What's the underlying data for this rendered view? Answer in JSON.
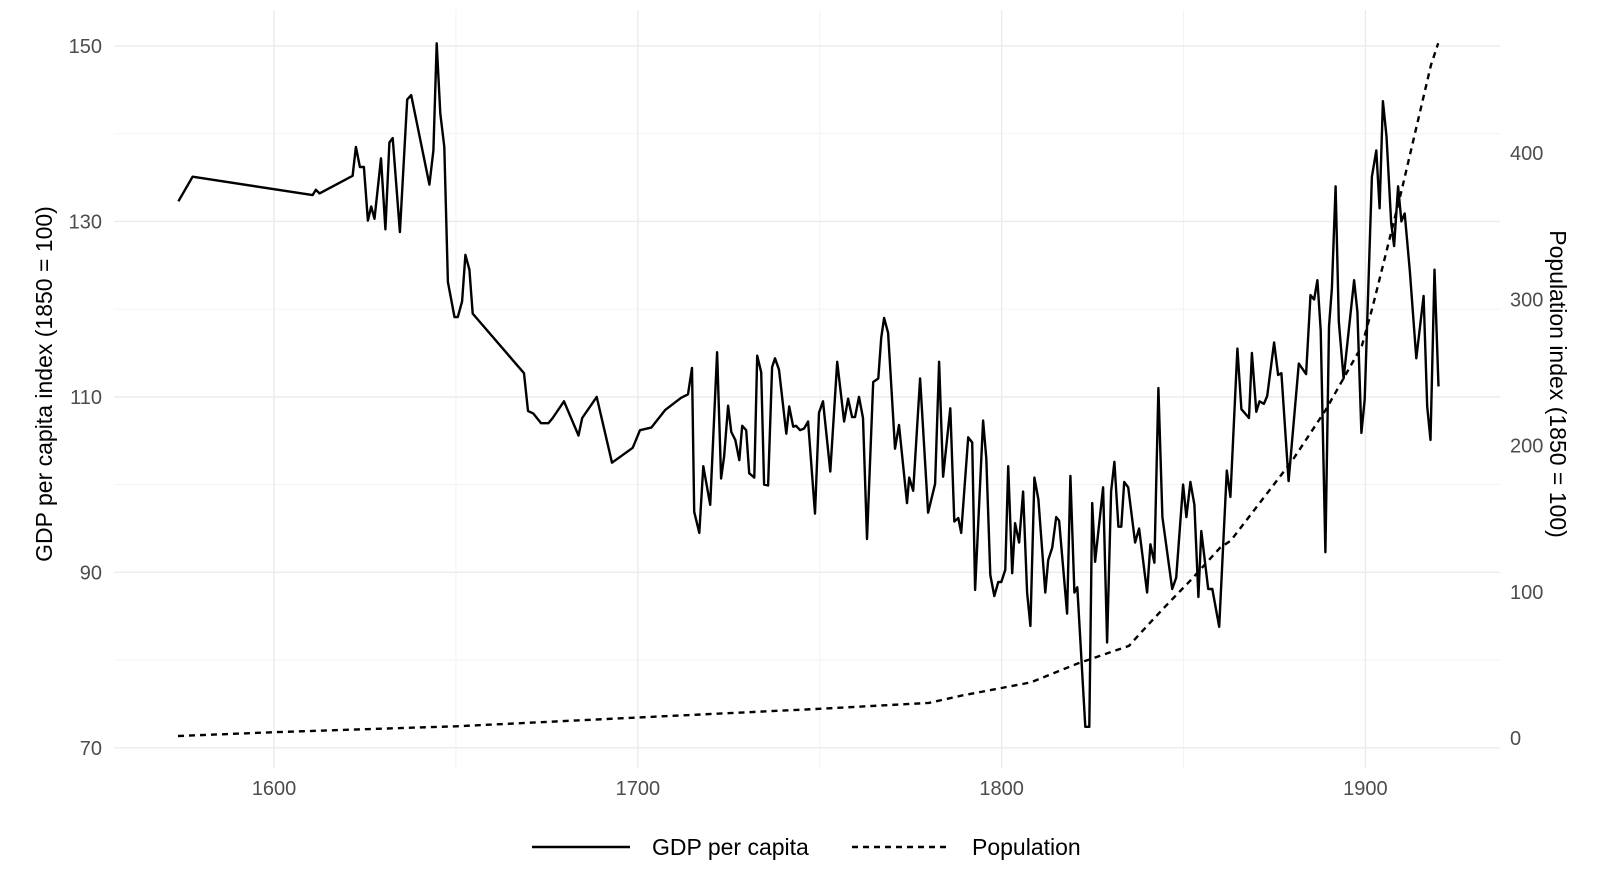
{
  "chart_data": {
    "type": "line",
    "title": "",
    "xlabel": "",
    "ylabel": "GDP per capita index (1850 = 100)",
    "y2label": "Population index (1850 = 100)",
    "xlim": [
      1556,
      1937
    ],
    "ylim": [
      67.7,
      154.1
    ],
    "y2lim": [
      -20.5,
      497.8
    ],
    "grid": true,
    "legend_position": "bottom",
    "x_ticks": [
      1600,
      1700,
      1800,
      1900
    ],
    "x_minor_ticks": [
      1650,
      1750,
      1850
    ],
    "y_ticks": [
      70,
      90,
      110,
      130,
      150
    ],
    "y_minor_ticks": [
      80,
      100,
      120,
      140
    ],
    "y2_ticks": [
      0,
      100,
      200,
      300,
      400
    ],
    "series": [
      {
        "name": "GDP per capita",
        "axis": "left",
        "style": "solid",
        "color": "#000000",
        "points": [
          [
            1573.7,
            132.3
          ],
          [
            1577.6,
            135.1
          ],
          [
            1610.6,
            133.0
          ],
          [
            1611.5,
            133.6
          ],
          [
            1612.5,
            133.2
          ],
          [
            1621.6,
            135.2
          ],
          [
            1622.5,
            138.5
          ],
          [
            1623.6,
            136.2
          ],
          [
            1624.7,
            136.2
          ],
          [
            1625.8,
            130.1
          ],
          [
            1626.7,
            131.7
          ],
          [
            1627.6,
            130.3
          ],
          [
            1629.4,
            137.2
          ],
          [
            1630.6,
            129.1
          ],
          [
            1631.7,
            139.0
          ],
          [
            1632.6,
            139.5
          ],
          [
            1634.6,
            128.8
          ],
          [
            1636.6,
            143.9
          ],
          [
            1637.7,
            144.4
          ],
          [
            1642.7,
            134.2
          ],
          [
            1643.8,
            138.1
          ],
          [
            1644.7,
            150.3
          ],
          [
            1645.7,
            142.3
          ],
          [
            1646.8,
            138.5
          ],
          [
            1647.8,
            123.1
          ],
          [
            1648.7,
            121.1
          ],
          [
            1649.6,
            119.1
          ],
          [
            1650.5,
            119.1
          ],
          [
            1651.7,
            120.9
          ],
          [
            1652.6,
            126.2
          ],
          [
            1653.7,
            124.5
          ],
          [
            1654.6,
            119.5
          ],
          [
            1668.7,
            112.7
          ],
          [
            1669.8,
            108.4
          ],
          [
            1671.3,
            108.1
          ],
          [
            1673.4,
            107.0
          ],
          [
            1675.4,
            107.0
          ],
          [
            1676.6,
            107.6
          ],
          [
            1679.7,
            109.5
          ],
          [
            1683.7,
            105.6
          ],
          [
            1684.7,
            107.6
          ],
          [
            1688.7,
            110.0
          ],
          [
            1692.9,
            102.5
          ],
          [
            1698.6,
            104.2
          ],
          [
            1700.6,
            106.2
          ],
          [
            1703.7,
            106.5
          ],
          [
            1707.5,
            108.5
          ],
          [
            1711.9,
            109.9
          ],
          [
            1713.8,
            110.3
          ],
          [
            1714.9,
            113.3
          ],
          [
            1715.5,
            96.9
          ],
          [
            1716.9,
            94.5
          ],
          [
            1718.0,
            102.1
          ],
          [
            1719.9,
            97.7
          ],
          [
            1721.8,
            115.1
          ],
          [
            1722.9,
            100.7
          ],
          [
            1723.7,
            103.2
          ],
          [
            1724.8,
            109.0
          ],
          [
            1725.7,
            106.0
          ],
          [
            1726.8,
            105.1
          ],
          [
            1727.9,
            102.8
          ],
          [
            1728.7,
            106.7
          ],
          [
            1729.8,
            106.2
          ],
          [
            1730.6,
            101.3
          ],
          [
            1732.0,
            100.8
          ],
          [
            1732.8,
            114.7
          ],
          [
            1733.9,
            112.8
          ],
          [
            1734.7,
            100.0
          ],
          [
            1735.8,
            99.9
          ],
          [
            1736.9,
            113.4
          ],
          [
            1737.7,
            114.4
          ],
          [
            1738.8,
            113.1
          ],
          [
            1740.8,
            105.8
          ],
          [
            1741.6,
            108.9
          ],
          [
            1742.7,
            106.6
          ],
          [
            1743.5,
            106.7
          ],
          [
            1744.6,
            106.2
          ],
          [
            1745.7,
            106.4
          ],
          [
            1746.8,
            107.2
          ],
          [
            1748.7,
            96.7
          ],
          [
            1749.8,
            108.2
          ],
          [
            1750.9,
            109.5
          ],
          [
            1752.9,
            101.5
          ],
          [
            1754.8,
            114.0
          ],
          [
            1756.7,
            107.2
          ],
          [
            1757.8,
            109.8
          ],
          [
            1758.9,
            107.7
          ],
          [
            1759.7,
            107.7
          ],
          [
            1760.8,
            110.0
          ],
          [
            1761.9,
            107.6
          ],
          [
            1763.0,
            93.8
          ],
          [
            1764.7,
            111.7
          ],
          [
            1766.1,
            112.1
          ],
          [
            1766.9,
            116.7
          ],
          [
            1767.7,
            119.0
          ],
          [
            1768.8,
            117.3
          ],
          [
            1770.2,
            107.6
          ],
          [
            1770.7,
            104.1
          ],
          [
            1771.8,
            106.8
          ],
          [
            1774.0,
            97.9
          ],
          [
            1774.6,
            100.8
          ],
          [
            1775.7,
            99.3
          ],
          [
            1777.6,
            112.1
          ],
          [
            1779.8,
            96.8
          ],
          [
            1781.7,
            100.1
          ],
          [
            1782.8,
            114.0
          ],
          [
            1783.9,
            100.9
          ],
          [
            1785.9,
            108.7
          ],
          [
            1787.0,
            95.8
          ],
          [
            1788.1,
            96.2
          ],
          [
            1788.9,
            94.5
          ],
          [
            1790.8,
            105.4
          ],
          [
            1791.9,
            104.8
          ],
          [
            1792.7,
            88.0
          ],
          [
            1794.9,
            107.3
          ],
          [
            1795.8,
            103.0
          ],
          [
            1796.9,
            89.7
          ],
          [
            1798.0,
            87.3
          ],
          [
            1799.1,
            88.9
          ],
          [
            1799.9,
            88.9
          ],
          [
            1801.0,
            90.3
          ],
          [
            1801.8,
            102.1
          ],
          [
            1802.9,
            89.9
          ],
          [
            1803.7,
            95.6
          ],
          [
            1804.8,
            93.4
          ],
          [
            1805.9,
            99.2
          ],
          [
            1807.0,
            87.7
          ],
          [
            1807.9,
            83.9
          ],
          [
            1809.0,
            100.8
          ],
          [
            1810.1,
            98.3
          ],
          [
            1812.0,
            87.7
          ],
          [
            1812.8,
            91.4
          ],
          [
            1813.9,
            92.8
          ],
          [
            1815.0,
            96.3
          ],
          [
            1815.8,
            95.9
          ],
          [
            1818.0,
            85.3
          ],
          [
            1818.9,
            101.0
          ],
          [
            1820.0,
            87.7
          ],
          [
            1820.8,
            88.3
          ],
          [
            1823.0,
            72.4
          ],
          [
            1824.1,
            72.4
          ],
          [
            1824.9,
            97.9
          ],
          [
            1825.7,
            91.2
          ],
          [
            1827.9,
            99.7
          ],
          [
            1829.0,
            82.0
          ],
          [
            1830.1,
            99.2
          ],
          [
            1831.0,
            102.6
          ],
          [
            1832.1,
            95.2
          ],
          [
            1832.9,
            95.2
          ],
          [
            1833.7,
            100.3
          ],
          [
            1834.8,
            99.7
          ],
          [
            1836.7,
            93.4
          ],
          [
            1837.8,
            95.0
          ],
          [
            1840.0,
            87.7
          ],
          [
            1840.9,
            93.2
          ],
          [
            1842.0,
            91.1
          ],
          [
            1843.1,
            111.0
          ],
          [
            1844.2,
            96.3
          ],
          [
            1846.9,
            88.1
          ],
          [
            1848.0,
            89.4
          ],
          [
            1849.9,
            100.0
          ],
          [
            1850.8,
            96.3
          ],
          [
            1851.9,
            100.3
          ],
          [
            1853.0,
            97.7
          ],
          [
            1854.1,
            87.2
          ],
          [
            1854.9,
            94.7
          ],
          [
            1856.8,
            88.1
          ],
          [
            1857.9,
            88.1
          ],
          [
            1859.8,
            83.8
          ],
          [
            1861.9,
            101.6
          ],
          [
            1862.9,
            98.6
          ],
          [
            1864.8,
            115.5
          ],
          [
            1865.9,
            108.6
          ],
          [
            1868.0,
            107.6
          ],
          [
            1868.8,
            115.0
          ],
          [
            1870.0,
            108.3
          ],
          [
            1870.9,
            109.5
          ],
          [
            1872.1,
            109.2
          ],
          [
            1873.0,
            110.1
          ],
          [
            1874.9,
            116.2
          ],
          [
            1876.0,
            112.5
          ],
          [
            1876.9,
            112.7
          ],
          [
            1878.9,
            100.4
          ],
          [
            1881.7,
            113.8
          ],
          [
            1883.7,
            112.6
          ],
          [
            1884.9,
            121.6
          ],
          [
            1885.9,
            121.1
          ],
          [
            1886.8,
            123.3
          ],
          [
            1887.7,
            117.6
          ],
          [
            1889.0,
            92.3
          ],
          [
            1890.0,
            118.0
          ],
          [
            1890.8,
            122.4
          ],
          [
            1891.8,
            134.0
          ],
          [
            1892.7,
            118.6
          ],
          [
            1894.0,
            112.1
          ],
          [
            1896.9,
            123.3
          ],
          [
            1897.8,
            119.7
          ],
          [
            1898.9,
            105.9
          ],
          [
            1899.8,
            109.7
          ],
          [
            1901.8,
            135.1
          ],
          [
            1903.0,
            138.1
          ],
          [
            1903.9,
            131.5
          ],
          [
            1904.8,
            143.7
          ],
          [
            1905.8,
            139.7
          ],
          [
            1907.1,
            129.8
          ],
          [
            1907.9,
            127.2
          ],
          [
            1909.0,
            134.0
          ],
          [
            1909.9,
            130.0
          ],
          [
            1910.8,
            130.9
          ],
          [
            1912.2,
            124.4
          ],
          [
            1914.0,
            114.4
          ],
          [
            1916.0,
            121.5
          ],
          [
            1917.0,
            108.9
          ],
          [
            1917.9,
            105.1
          ],
          [
            1919.0,
            124.5
          ],
          [
            1920.1,
            111.2
          ]
        ]
      },
      {
        "name": "Population",
        "axis": "right",
        "style": "dashed",
        "color": "#000000",
        "points": [
          [
            1573.6,
            1.4
          ],
          [
            1600,
            4
          ],
          [
            1625,
            6
          ],
          [
            1650,
            8
          ],
          [
            1700,
            14
          ],
          [
            1750,
            20
          ],
          [
            1780,
            24
          ],
          [
            1789,
            29
          ],
          [
            1808,
            38
          ],
          [
            1821,
            51
          ],
          [
            1835,
            63
          ],
          [
            1839,
            74
          ],
          [
            1845,
            90
          ],
          [
            1852,
            108
          ],
          [
            1860,
            130
          ],
          [
            1863,
            135
          ],
          [
            1880,
            190
          ],
          [
            1889,
            224
          ],
          [
            1899,
            268
          ],
          [
            1902,
            295
          ],
          [
            1907,
            345
          ],
          [
            1910,
            375
          ],
          [
            1918,
            460
          ],
          [
            1920,
            475
          ]
        ]
      }
    ]
  },
  "legend": {
    "items": [
      {
        "label": "GDP per capita",
        "style": "solid"
      },
      {
        "label": "Population",
        "style": "dashed"
      }
    ]
  }
}
